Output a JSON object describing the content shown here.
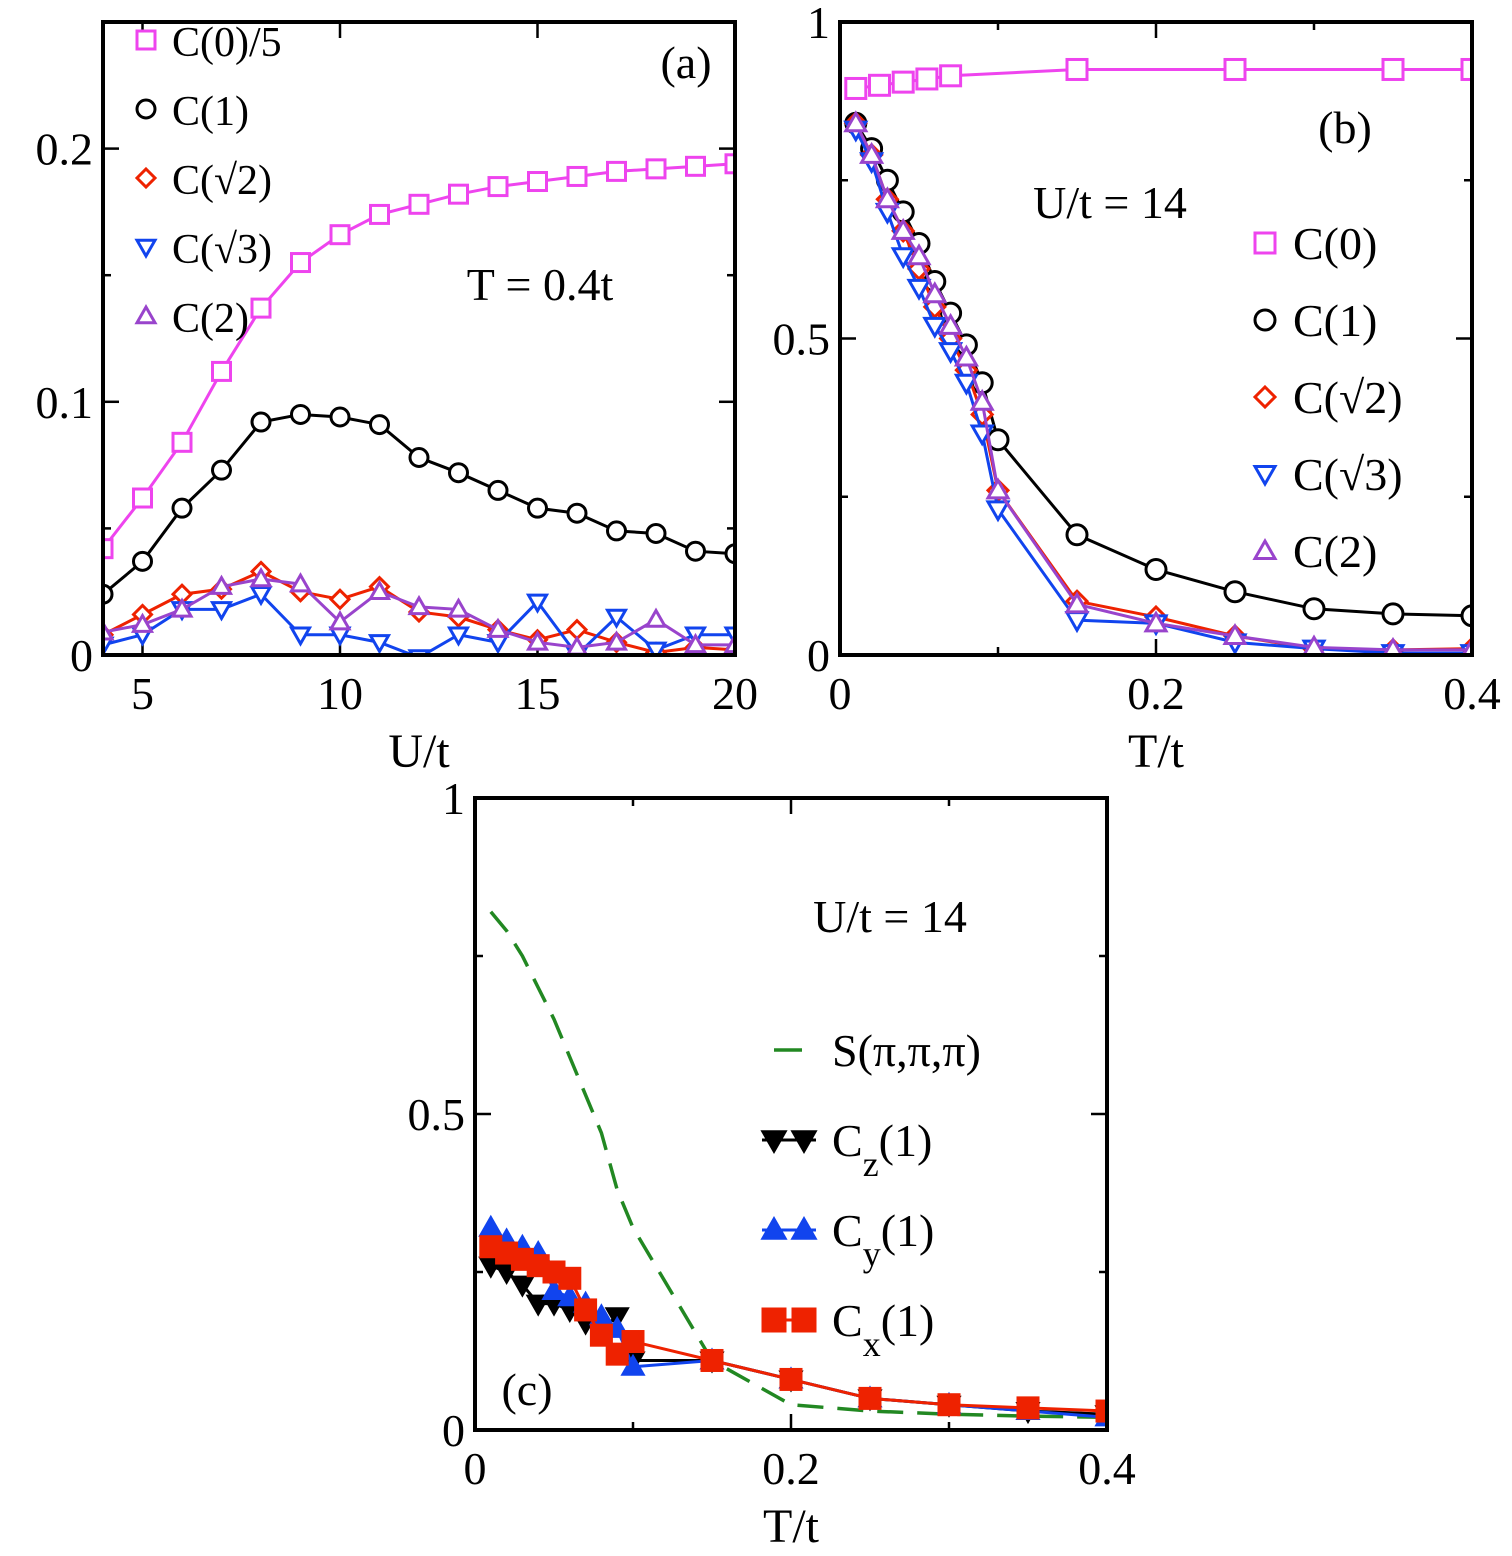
{
  "chart_data": [
    {
      "id": "a",
      "type": "line",
      "panel_label": "(a)",
      "annotation": "T = 0.4t",
      "xlabel": "U/t",
      "ylabel": "",
      "xlim": [
        4,
        20
      ],
      "ylim": [
        0,
        0.25
      ],
      "xticks": [
        5,
        10,
        15,
        20
      ],
      "xtick_labels": [
        "5",
        "10",
        "15",
        "20"
      ],
      "yticks": [
        0,
        0.1,
        0.2
      ],
      "ytick_labels": [
        "0",
        "0.1",
        "0.2"
      ],
      "minor_yticks": [
        0.05,
        0.15,
        0.25
      ],
      "legend_position": "top-left",
      "series": [
        {
          "name": "C(0)/5",
          "color": "#ee44ee",
          "marker": "square",
          "filled": false,
          "x": [
            4,
            5,
            6,
            7,
            8,
            9,
            10,
            11,
            12,
            13,
            14,
            15,
            16,
            17,
            18,
            19,
            20
          ],
          "y": [
            0.042,
            0.062,
            0.084,
            0.112,
            0.137,
            0.155,
            0.166,
            0.174,
            0.178,
            0.182,
            0.185,
            0.187,
            0.189,
            0.191,
            0.192,
            0.193,
            0.194
          ]
        },
        {
          "name": "C(1)",
          "color": "#000000",
          "marker": "circle",
          "filled": false,
          "x": [
            4,
            5,
            6,
            7,
            8,
            9,
            10,
            11,
            12,
            13,
            14,
            15,
            16,
            17,
            18,
            19,
            20
          ],
          "y": [
            0.024,
            0.037,
            0.058,
            0.073,
            0.092,
            0.095,
            0.094,
            0.091,
            0.078,
            0.072,
            0.065,
            0.058,
            0.056,
            0.049,
            0.048,
            0.041,
            0.04
          ]
        },
        {
          "name": "C(√2)",
          "color": "#ee2200",
          "marker": "diamond",
          "filled": false,
          "x": [
            4,
            5,
            6,
            7,
            8,
            9,
            10,
            11,
            12,
            13,
            14,
            15,
            16,
            17,
            18,
            19,
            20
          ],
          "y": [
            0.008,
            0.016,
            0.024,
            0.026,
            0.033,
            0.025,
            0.022,
            0.027,
            0.017,
            0.015,
            0.01,
            0.006,
            0.01,
            0.005,
            0.001,
            0.003,
            0.002
          ]
        },
        {
          "name": "C(√3)",
          "color": "#1144ee",
          "marker": "triangle-down",
          "filled": false,
          "x": [
            4,
            5,
            6,
            7,
            8,
            9,
            10,
            11,
            12,
            13,
            14,
            15,
            16,
            17,
            18,
            19,
            20
          ],
          "y": [
            0.004,
            0.008,
            0.018,
            0.018,
            0.024,
            0.008,
            0.008,
            0.005,
            -0.001,
            0.008,
            0.005,
            0.021,
            0.0,
            0.015,
            0.002,
            0.008,
            0.008
          ]
        },
        {
          "name": "C(2)",
          "color": "#9944cc",
          "marker": "triangle-up",
          "filled": false,
          "x": [
            4,
            5,
            6,
            7,
            8,
            9,
            10,
            11,
            12,
            13,
            14,
            15,
            16,
            17,
            18,
            19,
            20
          ],
          "y": [
            0.009,
            0.012,
            0.018,
            0.027,
            0.03,
            0.028,
            0.013,
            0.025,
            0.019,
            0.018,
            0.01,
            0.005,
            0.003,
            0.005,
            0.014,
            0.004,
            0.004
          ]
        }
      ]
    },
    {
      "id": "b",
      "type": "line",
      "panel_label": "(b)",
      "annotation": "U/t = 14",
      "xlabel": "T/t",
      "ylabel": "",
      "xlim": [
        0,
        0.4
      ],
      "ylim": [
        0,
        1
      ],
      "xticks": [
        0,
        0.2,
        0.4
      ],
      "xtick_labels": [
        "0",
        "0.2",
        "0.4"
      ],
      "minor_xticks": [
        0.1,
        0.3
      ],
      "yticks": [
        0,
        0.5,
        1
      ],
      "ytick_labels": [
        "0",
        "0.5",
        "1"
      ],
      "minor_yticks": [
        0.25,
        0.75
      ],
      "legend_position": "right",
      "series": [
        {
          "name": "C(0)",
          "color": "#ee44ee",
          "marker": "square",
          "filled": false,
          "x": [
            0.01,
            0.025,
            0.04,
            0.055,
            0.07,
            0.15,
            0.25,
            0.35,
            0.4
          ],
          "y": [
            0.895,
            0.9,
            0.905,
            0.91,
            0.915,
            0.925,
            0.925,
            0.925,
            0.925
          ]
        },
        {
          "name": "C(1)",
          "color": "#000000",
          "marker": "circle",
          "filled": false,
          "x": [
            0.01,
            0.02,
            0.03,
            0.04,
            0.05,
            0.06,
            0.07,
            0.08,
            0.09,
            0.1,
            0.15,
            0.2,
            0.25,
            0.3,
            0.35,
            0.4
          ],
          "y": [
            0.84,
            0.8,
            0.75,
            0.7,
            0.65,
            0.59,
            0.54,
            0.49,
            0.43,
            0.34,
            0.19,
            0.135,
            0.1,
            0.073,
            0.065,
            0.062
          ]
        },
        {
          "name": "C(√2)",
          "color": "#ee2200",
          "marker": "diamond",
          "filled": false,
          "x": [
            0.01,
            0.02,
            0.03,
            0.04,
            0.05,
            0.06,
            0.07,
            0.08,
            0.09,
            0.1,
            0.15,
            0.2,
            0.25,
            0.3,
            0.35,
            0.4
          ],
          "y": [
            0.84,
            0.79,
            0.72,
            0.67,
            0.61,
            0.55,
            0.5,
            0.45,
            0.38,
            0.26,
            0.085,
            0.06,
            0.03,
            0.01,
            0.008,
            0.01
          ]
        },
        {
          "name": "C(√3)",
          "color": "#1144ee",
          "marker": "triangle-down",
          "filled": false,
          "x": [
            0.01,
            0.02,
            0.03,
            0.04,
            0.05,
            0.06,
            0.07,
            0.08,
            0.09,
            0.1,
            0.15,
            0.2,
            0.25,
            0.3,
            0.35,
            0.4
          ],
          "y": [
            0.83,
            0.78,
            0.7,
            0.63,
            0.58,
            0.52,
            0.48,
            0.43,
            0.35,
            0.23,
            0.055,
            0.05,
            0.02,
            0.01,
            0.003,
            0.003
          ]
        },
        {
          "name": "C(2)",
          "color": "#9944cc",
          "marker": "triangle-up",
          "filled": false,
          "x": [
            0.01,
            0.02,
            0.03,
            0.04,
            0.05,
            0.06,
            0.07,
            0.08,
            0.09,
            0.1,
            0.15,
            0.2,
            0.25,
            0.3,
            0.35,
            0.4
          ],
          "y": [
            0.84,
            0.79,
            0.72,
            0.67,
            0.63,
            0.57,
            0.52,
            0.47,
            0.4,
            0.26,
            0.08,
            0.05,
            0.03,
            0.012,
            0.008,
            0.008
          ]
        }
      ]
    },
    {
      "id": "c",
      "type": "line",
      "panel_label": "(c)",
      "annotation": "U/t = 14",
      "xlabel": "T/t",
      "ylabel": "",
      "xlim": [
        0,
        0.4
      ],
      "ylim": [
        0,
        1
      ],
      "xticks": [
        0,
        0.2,
        0.4
      ],
      "xtick_labels": [
        "0",
        "0.2",
        "0.4"
      ],
      "minor_xticks": [
        0.1,
        0.3
      ],
      "yticks": [
        0,
        0.5,
        1
      ],
      "ytick_labels": [
        "0",
        "0.5",
        "1"
      ],
      "minor_yticks": [
        0.25,
        0.75
      ],
      "legend_position": "right",
      "series": [
        {
          "name": "S(π,π,π)",
          "legend_text": "S(π,π,π)",
          "legend_sub": "",
          "legend_tail": "",
          "color": "#228822",
          "marker": "none",
          "dashed": true,
          "x": [
            0.01,
            0.02,
            0.03,
            0.04,
            0.05,
            0.06,
            0.07,
            0.08,
            0.09,
            0.1,
            0.15,
            0.2,
            0.25,
            0.3,
            0.35,
            0.4
          ],
          "y": [
            0.82,
            0.79,
            0.75,
            0.7,
            0.65,
            0.59,
            0.53,
            0.47,
            0.38,
            0.32,
            0.11,
            0.04,
            0.03,
            0.025,
            0.022,
            0.02
          ]
        },
        {
          "name": "Cz(1)",
          "legend_text": "C",
          "legend_sub": "z",
          "legend_tail": "(1)",
          "color": "#000000",
          "marker": "triangle-down",
          "filled": true,
          "x": [
            0.01,
            0.02,
            0.03,
            0.04,
            0.05,
            0.06,
            0.07,
            0.08,
            0.09,
            0.1,
            0.15,
            0.2,
            0.25,
            0.3,
            0.35,
            0.4
          ],
          "y": [
            0.26,
            0.25,
            0.23,
            0.2,
            0.2,
            0.19,
            0.17,
            0.16,
            0.18,
            0.11,
            0.11,
            0.08,
            0.05,
            0.04,
            0.03,
            0.025
          ]
        },
        {
          "name": "Cy(1)",
          "legend_text": "C",
          "legend_sub": "y",
          "legend_tail": "(1)",
          "color": "#1144ee",
          "marker": "triangle-up",
          "filled": true,
          "x": [
            0.01,
            0.02,
            0.03,
            0.04,
            0.05,
            0.06,
            0.07,
            0.08,
            0.09,
            0.1,
            0.15,
            0.2,
            0.25,
            0.3,
            0.35,
            0.4
          ],
          "y": [
            0.32,
            0.3,
            0.29,
            0.28,
            0.22,
            0.21,
            0.2,
            0.18,
            0.16,
            0.1,
            0.11,
            0.08,
            0.05,
            0.04,
            0.03,
            0.02
          ]
        },
        {
          "name": "Cx(1)",
          "legend_text": "C",
          "legend_sub": "x",
          "legend_tail": "(1)",
          "color": "#ee2200",
          "marker": "square",
          "filled": true,
          "x": [
            0.01,
            0.02,
            0.03,
            0.04,
            0.05,
            0.06,
            0.07,
            0.08,
            0.09,
            0.1,
            0.15,
            0.2,
            0.25,
            0.3,
            0.35,
            0.4
          ],
          "y": [
            0.29,
            0.28,
            0.27,
            0.26,
            0.25,
            0.24,
            0.19,
            0.15,
            0.12,
            0.14,
            0.11,
            0.08,
            0.05,
            0.04,
            0.035,
            0.03
          ]
        }
      ]
    }
  ]
}
